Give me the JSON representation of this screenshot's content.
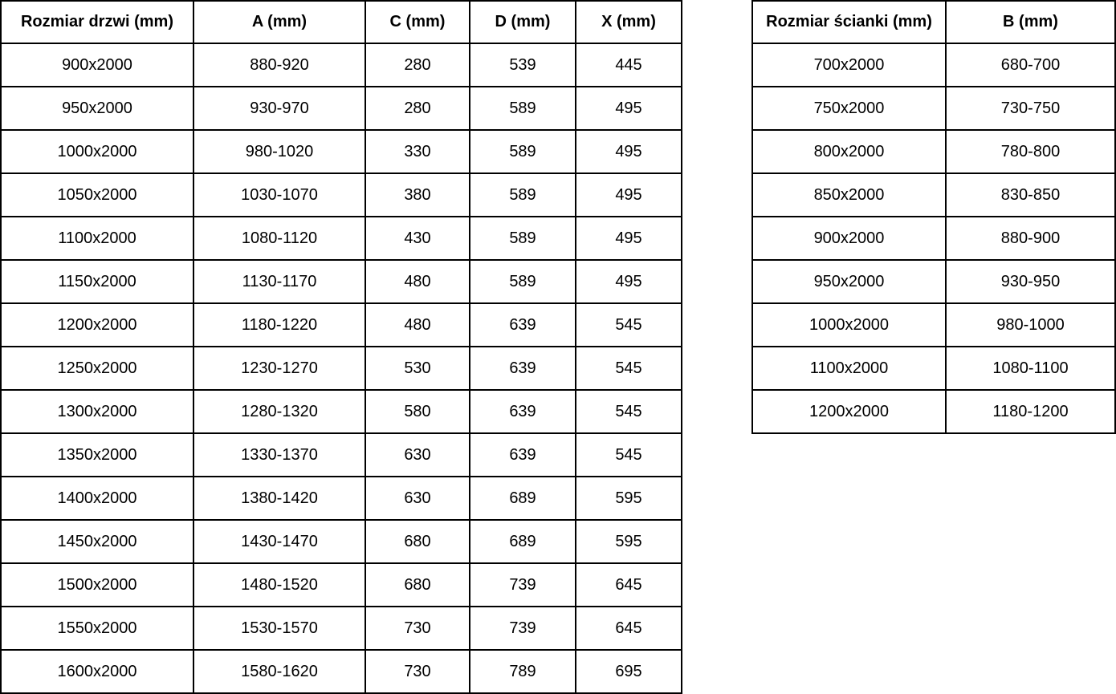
{
  "door_table": {
    "headers": [
      "Rozmiar drzwi (mm)",
      "A (mm)",
      "C (mm)",
      "D (mm)",
      "X (mm)"
    ],
    "rows": [
      [
        "900x2000",
        "880-920",
        "280",
        "539",
        "445"
      ],
      [
        "950x2000",
        "930-970",
        "280",
        "589",
        "495"
      ],
      [
        "1000x2000",
        "980-1020",
        "330",
        "589",
        "495"
      ],
      [
        "1050x2000",
        "1030-1070",
        "380",
        "589",
        "495"
      ],
      [
        "1100x2000",
        "1080-1120",
        "430",
        "589",
        "495"
      ],
      [
        "1150x2000",
        "1130-1170",
        "480",
        "589",
        "495"
      ],
      [
        "1200x2000",
        "1180-1220",
        "480",
        "639",
        "545"
      ],
      [
        "1250x2000",
        "1230-1270",
        "530",
        "639",
        "545"
      ],
      [
        "1300x2000",
        "1280-1320",
        "580",
        "639",
        "545"
      ],
      [
        "1350x2000",
        "1330-1370",
        "630",
        "639",
        "545"
      ],
      [
        "1400x2000",
        "1380-1420",
        "630",
        "689",
        "595"
      ],
      [
        "1450x2000",
        "1430-1470",
        "680",
        "689",
        "595"
      ],
      [
        "1500x2000",
        "1480-1520",
        "680",
        "739",
        "645"
      ],
      [
        "1550x2000",
        "1530-1570",
        "730",
        "739",
        "645"
      ],
      [
        "1600x2000",
        "1580-1620",
        "730",
        "789",
        "695"
      ]
    ]
  },
  "wall_table": {
    "headers": [
      "Rozmiar ścianki (mm)",
      "B (mm)"
    ],
    "rows": [
      [
        "700x2000",
        "680-700"
      ],
      [
        "750x2000",
        "730-750"
      ],
      [
        "800x2000",
        "780-800"
      ],
      [
        "850x2000",
        "830-850"
      ],
      [
        "900x2000",
        "880-900"
      ],
      [
        "950x2000",
        "930-950"
      ],
      [
        "1000x2000",
        "980-1000"
      ],
      [
        "1100x2000",
        "1080-1100"
      ],
      [
        "1200x2000",
        "1180-1200"
      ]
    ]
  },
  "colors": {
    "border": "#000000",
    "text": "#000000",
    "background": "#ffffff"
  }
}
